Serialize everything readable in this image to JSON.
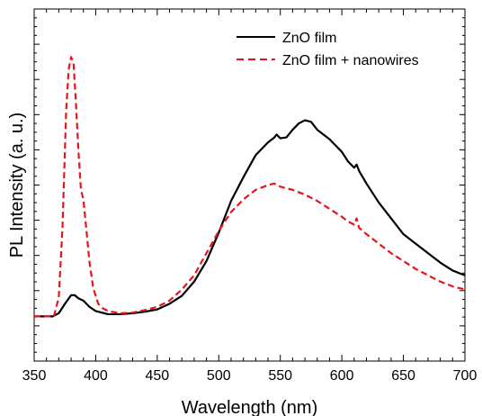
{
  "chart_data": {
    "type": "line",
    "xlabel": "Wavelength (nm)",
    "ylabel": "PL Intensity (a. u.)",
    "xlim": [
      350,
      700
    ],
    "ylim": [
      0,
      1
    ],
    "xticks": [
      350,
      400,
      450,
      500,
      550,
      600,
      650,
      700
    ],
    "x_minor_step": 10,
    "y_tick_labels": "none",
    "legend_position": "top-right",
    "series": [
      {
        "name": "ZnO film",
        "color": "#000000",
        "dash": "solid",
        "points": [
          [
            350,
            0.07
          ],
          [
            360,
            0.07
          ],
          [
            365,
            0.07
          ],
          [
            370,
            0.08
          ],
          [
            375,
            0.11
          ],
          [
            380,
            0.137
          ],
          [
            383,
            0.137
          ],
          [
            386,
            0.127
          ],
          [
            390,
            0.12
          ],
          [
            395,
            0.1
          ],
          [
            400,
            0.087
          ],
          [
            410,
            0.077
          ],
          [
            420,
            0.077
          ],
          [
            430,
            0.08
          ],
          [
            440,
            0.085
          ],
          [
            450,
            0.092
          ],
          [
            460,
            0.11
          ],
          [
            470,
            0.135
          ],
          [
            480,
            0.18
          ],
          [
            490,
            0.245
          ],
          [
            500,
            0.335
          ],
          [
            510,
            0.435
          ],
          [
            520,
            0.51
          ],
          [
            530,
            0.58
          ],
          [
            540,
            0.62
          ],
          [
            545,
            0.635
          ],
          [
            547,
            0.645
          ],
          [
            550,
            0.633
          ],
          [
            555,
            0.636
          ],
          [
            560,
            0.66
          ],
          [
            565,
            0.68
          ],
          [
            570,
            0.69
          ],
          [
            575,
            0.685
          ],
          [
            580,
            0.66
          ],
          [
            590,
            0.63
          ],
          [
            600,
            0.59
          ],
          [
            605,
            0.56
          ],
          [
            610,
            0.54
          ],
          [
            612,
            0.55
          ],
          [
            614,
            0.53
          ],
          [
            620,
            0.49
          ],
          [
            630,
            0.43
          ],
          [
            640,
            0.38
          ],
          [
            650,
            0.33
          ],
          [
            660,
            0.3
          ],
          [
            670,
            0.27
          ],
          [
            680,
            0.24
          ],
          [
            690,
            0.215
          ],
          [
            700,
            0.2
          ]
        ]
      },
      {
        "name": "ZnO film + nanowires",
        "color": "#e8141b",
        "dash": "dashed",
        "points": [
          [
            350,
            0.07
          ],
          [
            360,
            0.07
          ],
          [
            366,
            0.07
          ],
          [
            370,
            0.13
          ],
          [
            373,
            0.35
          ],
          [
            376,
            0.72
          ],
          [
            378,
            0.85
          ],
          [
            380,
            0.89
          ],
          [
            382,
            0.87
          ],
          [
            384,
            0.74
          ],
          [
            386,
            0.59
          ],
          [
            388,
            0.47
          ],
          [
            390,
            0.44
          ],
          [
            392,
            0.36
          ],
          [
            395,
            0.24
          ],
          [
            398,
            0.16
          ],
          [
            402,
            0.11
          ],
          [
            406,
            0.095
          ],
          [
            410,
            0.087
          ],
          [
            420,
            0.08
          ],
          [
            430,
            0.082
          ],
          [
            440,
            0.09
          ],
          [
            450,
            0.1
          ],
          [
            460,
            0.12
          ],
          [
            470,
            0.155
          ],
          [
            480,
            0.2
          ],
          [
            490,
            0.27
          ],
          [
            500,
            0.34
          ],
          [
            510,
            0.4
          ],
          [
            520,
            0.44
          ],
          [
            530,
            0.47
          ],
          [
            540,
            0.485
          ],
          [
            545,
            0.49
          ],
          [
            548,
            0.485
          ],
          [
            550,
            0.48
          ],
          [
            560,
            0.47
          ],
          [
            570,
            0.455
          ],
          [
            580,
            0.435
          ],
          [
            590,
            0.41
          ],
          [
            600,
            0.385
          ],
          [
            605,
            0.37
          ],
          [
            610,
            0.36
          ],
          [
            612,
            0.38
          ],
          [
            614,
            0.35
          ],
          [
            620,
            0.33
          ],
          [
            630,
            0.3
          ],
          [
            640,
            0.27
          ],
          [
            650,
            0.245
          ],
          [
            660,
            0.22
          ],
          [
            670,
            0.2
          ],
          [
            680,
            0.18
          ],
          [
            690,
            0.165
          ],
          [
            700,
            0.155
          ]
        ]
      }
    ]
  }
}
